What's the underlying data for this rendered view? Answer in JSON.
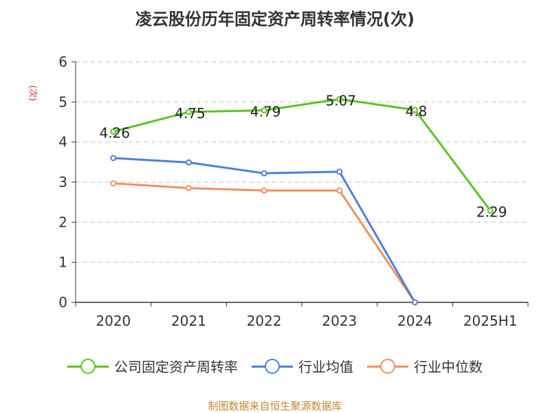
{
  "title": "凌云股份历年固定资产周转率情况(次)",
  "source": "制图数据来自恒生聚源数据库",
  "chart_data": {
    "type": "line",
    "title": "凌云股份历年固定资产周转率情况(次)",
    "ylabel": "(次)",
    "xlabel": "",
    "categories": [
      "2020",
      "2021",
      "2022",
      "2023",
      "2024",
      "2025H1"
    ],
    "ylim": [
      0,
      6
    ],
    "yticks": [
      0,
      1,
      2,
      3,
      4,
      5,
      6
    ],
    "grid": true,
    "legend_position": "bottom",
    "series": [
      {
        "name": "公司固定资产周转率",
        "color": "#5bc324",
        "labeled": true,
        "values": [
          4.26,
          4.75,
          4.79,
          5.07,
          4.8,
          2.29
        ]
      },
      {
        "name": "行业均值",
        "color": "#4e7fd9",
        "labeled": false,
        "values": [
          3.6,
          3.49,
          3.22,
          3.26,
          0,
          null
        ]
      },
      {
        "name": "行业中位数",
        "color": "#f4905e",
        "labeled": false,
        "values": [
          2.97,
          2.85,
          2.79,
          2.79,
          0,
          null
        ]
      }
    ]
  }
}
